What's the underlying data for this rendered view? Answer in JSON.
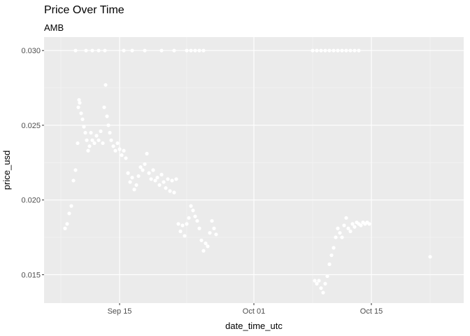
{
  "chart_data": {
    "type": "scatter",
    "title": "Price Over Time",
    "subtitle": "AMB",
    "xlabel": "date_time_utc",
    "ylabel": "price_usd",
    "x_ticks": [
      "Sep 15",
      "Oct 01",
      "Oct 15"
    ],
    "y_ticks": [
      "0.015",
      "0.020",
      "0.025",
      "0.030"
    ],
    "xlim": [
      "2018-09-06",
      "2018-10-26"
    ],
    "ylim": [
      0.0131,
      0.0309
    ],
    "grid": true,
    "point_color": "#ffffff",
    "panel_color": "#ebebeb",
    "points": [
      [
        "2018-09-08 12:00",
        0.0181
      ],
      [
        "2018-09-08 18:00",
        0.0184
      ],
      [
        "2018-09-09 00:00",
        0.0191
      ],
      [
        "2018-09-09 06:00",
        0.0196
      ],
      [
        "2018-09-09 12:00",
        0.0213
      ],
      [
        "2018-09-09 18:00",
        0.022
      ],
      [
        "2018-09-10 00:00",
        0.0238
      ],
      [
        "2018-09-10 02:00",
        0.0262
      ],
      [
        "2018-09-10 04:00",
        0.0267
      ],
      [
        "2018-09-10 06:00",
        0.0265
      ],
      [
        "2018-09-10 10:00",
        0.0258
      ],
      [
        "2018-09-10 14:00",
        0.0254
      ],
      [
        "2018-09-10 18:00",
        0.0249
      ],
      [
        "2018-09-10 22:00",
        0.0245
      ],
      [
        "2018-09-11 02:00",
        0.024
      ],
      [
        "2018-09-11 06:00",
        0.0233
      ],
      [
        "2018-09-11 10:00",
        0.0236
      ],
      [
        "2018-09-11 14:00",
        0.0245
      ],
      [
        "2018-09-11 18:00",
        0.024
      ],
      [
        "2018-09-12 00:00",
        0.0238
      ],
      [
        "2018-09-12 06:00",
        0.0243
      ],
      [
        "2018-09-12 12:00",
        0.024
      ],
      [
        "2018-09-12 18:00",
        0.0246
      ],
      [
        "2018-09-13 00:00",
        0.0238
      ],
      [
        "2018-09-13 04:00",
        0.0262
      ],
      [
        "2018-09-13 08:00",
        0.0277
      ],
      [
        "2018-09-13 12:00",
        0.0256
      ],
      [
        "2018-09-13 16:00",
        0.025
      ],
      [
        "2018-09-13 20:00",
        0.0245
      ],
      [
        "2018-09-14 00:00",
        0.024
      ],
      [
        "2018-09-14 06:00",
        0.0236
      ],
      [
        "2018-09-14 12:00",
        0.0233
      ],
      [
        "2018-09-14 18:00",
        0.0238
      ],
      [
        "2018-09-15 00:00",
        0.0234
      ],
      [
        "2018-09-15 06:00",
        0.023
      ],
      [
        "2018-09-15 12:00",
        0.0233
      ],
      [
        "2018-09-15 18:00",
        0.0228
      ],
      [
        "2018-09-16 00:00",
        0.0218
      ],
      [
        "2018-09-16 06:00",
        0.0212
      ],
      [
        "2018-09-16 12:00",
        0.0215
      ],
      [
        "2018-09-16 18:00",
        0.0207
      ],
      [
        "2018-09-17 00:00",
        0.021
      ],
      [
        "2018-09-17 06:00",
        0.0216
      ],
      [
        "2018-09-17 12:00",
        0.0222
      ],
      [
        "2018-09-17 18:00",
        0.022
      ],
      [
        "2018-09-18 00:00",
        0.0224
      ],
      [
        "2018-09-18 06:00",
        0.0231
      ],
      [
        "2018-09-18 12:00",
        0.0218
      ],
      [
        "2018-09-18 18:00",
        0.0214
      ],
      [
        "2018-09-19 00:00",
        0.022
      ],
      [
        "2018-09-19 06:00",
        0.0213
      ],
      [
        "2018-09-19 12:00",
        0.0215
      ],
      [
        "2018-09-19 18:00",
        0.021
      ],
      [
        "2018-09-20 00:00",
        0.0217
      ],
      [
        "2018-09-20 06:00",
        0.0212
      ],
      [
        "2018-09-20 12:00",
        0.0208
      ],
      [
        "2018-09-20 18:00",
        0.0214
      ],
      [
        "2018-09-21 00:00",
        0.0206
      ],
      [
        "2018-09-21 06:00",
        0.0213
      ],
      [
        "2018-09-21 12:00",
        0.0205
      ],
      [
        "2018-09-21 18:00",
        0.0214
      ],
      [
        "2018-09-22 00:00",
        0.0184
      ],
      [
        "2018-09-22 06:00",
        0.0179
      ],
      [
        "2018-09-22 12:00",
        0.0183
      ],
      [
        "2018-09-22 18:00",
        0.0176
      ],
      [
        "2018-09-23 00:00",
        0.0184
      ],
      [
        "2018-09-23 06:00",
        0.0188
      ],
      [
        "2018-09-23 12:00",
        0.0196
      ],
      [
        "2018-09-23 18:00",
        0.0193
      ],
      [
        "2018-09-24 00:00",
        0.0189
      ],
      [
        "2018-09-24 06:00",
        0.0186
      ],
      [
        "2018-09-24 12:00",
        0.0181
      ],
      [
        "2018-09-24 18:00",
        0.0173
      ],
      [
        "2018-09-25 00:00",
        0.0166
      ],
      [
        "2018-09-25 06:00",
        0.0171
      ],
      [
        "2018-09-25 12:00",
        0.0169
      ],
      [
        "2018-09-25 18:00",
        0.0178
      ],
      [
        "2018-09-26 00:00",
        0.0186
      ],
      [
        "2018-09-26 06:00",
        0.0181
      ],
      [
        "2018-09-26 12:00",
        0.0177
      ],
      [
        "2018-10-08 06:00",
        0.0146
      ],
      [
        "2018-10-08 12:00",
        0.0144
      ],
      [
        "2018-10-08 18:00",
        0.0146
      ],
      [
        "2018-10-09 00:00",
        0.0141
      ],
      [
        "2018-10-09 06:00",
        0.0138
      ],
      [
        "2018-10-09 12:00",
        0.0144
      ],
      [
        "2018-10-09 18:00",
        0.0149
      ],
      [
        "2018-10-10 00:00",
        0.0157
      ],
      [
        "2018-10-10 06:00",
        0.0163
      ],
      [
        "2018-10-10 12:00",
        0.0168
      ],
      [
        "2018-10-10 18:00",
        0.0175
      ],
      [
        "2018-10-11 00:00",
        0.0181
      ],
      [
        "2018-10-11 06:00",
        0.0178
      ],
      [
        "2018-10-11 12:00",
        0.0175
      ],
      [
        "2018-10-11 18:00",
        0.0183
      ],
      [
        "2018-10-12 00:00",
        0.0188
      ],
      [
        "2018-10-12 06:00",
        0.0181
      ],
      [
        "2018-10-12 12:00",
        0.0179
      ],
      [
        "2018-10-12 18:00",
        0.0184
      ],
      [
        "2018-10-13 00:00",
        0.0182
      ],
      [
        "2018-10-13 06:00",
        0.0185
      ],
      [
        "2018-10-13 12:00",
        0.0184
      ],
      [
        "2018-10-13 18:00",
        0.0183
      ],
      [
        "2018-10-14 00:00",
        0.0185
      ],
      [
        "2018-10-14 06:00",
        0.0184
      ],
      [
        "2018-10-14 12:00",
        0.0185
      ],
      [
        "2018-10-14 18:00",
        0.0184
      ],
      [
        "2018-10-22 00:00",
        0.0162
      ]
    ],
    "points_at_ceiling": [
      "2018-09-09 18:00",
      "2018-09-11 00:00",
      "2018-09-11 18:00",
      "2018-09-12 12:00",
      "2018-09-13 06:00",
      "2018-09-15 12:00",
      "2018-09-16 12:00",
      "2018-09-18 00:00",
      "2018-09-20 00:00",
      "2018-09-21 12:00",
      "2018-09-23 00:00",
      "2018-09-23 12:00",
      "2018-09-24 00:00",
      "2018-09-24 12:00",
      "2018-09-25 00:00",
      "2018-10-08 00:00",
      "2018-10-08 12:00",
      "2018-10-09 00:00",
      "2018-10-09 12:00",
      "2018-10-10 00:00",
      "2018-10-10 12:00",
      "2018-10-11 00:00",
      "2018-10-11 12:00",
      "2018-10-12 00:00",
      "2018-10-12 12:00",
      "2018-10-13 00:00",
      "2018-10-13 12:00"
    ],
    "ceiling_value": 0.03
  }
}
